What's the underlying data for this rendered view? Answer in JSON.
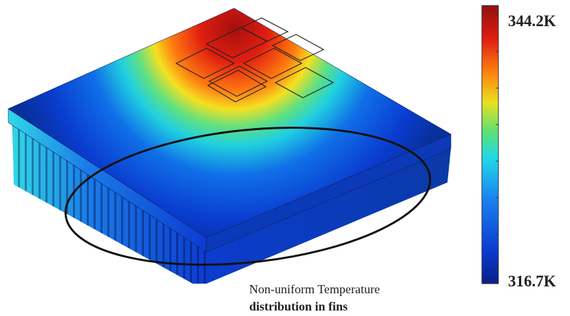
{
  "colorbar": {
    "max_label": "344.2K",
    "min_label": "316.7K"
  },
  "annotation": {
    "line1": "Non-uniform Temperature",
    "line2": "distribution in fins"
  }
}
